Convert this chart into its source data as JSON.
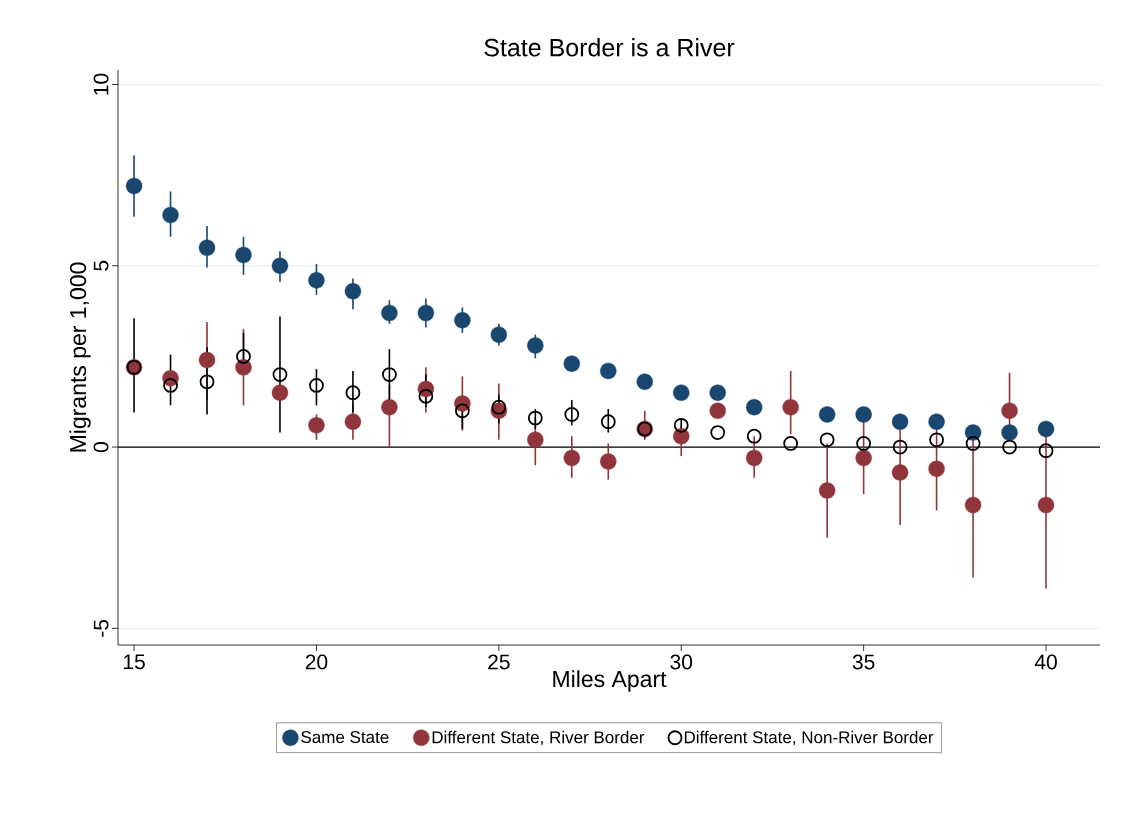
{
  "chart_data": {
    "type": "scatter",
    "title": "State Border is a River",
    "xlabel": "Miles Apart",
    "ylabel": "Migrants per 1,000",
    "x": [
      15,
      16,
      17,
      18,
      19,
      20,
      21,
      22,
      23,
      24,
      25,
      26,
      27,
      28,
      29,
      30,
      31,
      32,
      33,
      34,
      35,
      36,
      37,
      38,
      39,
      40
    ],
    "series": [
      {
        "name": "Same State",
        "color": "#1a476f",
        "values": [
          7.2,
          6.4,
          5.5,
          5.3,
          5.0,
          4.6,
          4.3,
          3.7,
          3.7,
          3.5,
          3.1,
          2.8,
          2.3,
          2.1,
          1.8,
          1.5,
          1.5,
          1.1,
          null,
          0.9,
          0.9,
          0.7,
          0.7,
          0.4,
          0.4,
          0.5
        ],
        "errors": [
          [
            6.35,
            8.05
          ],
          [
            5.8,
            7.05
          ],
          [
            4.95,
            6.1
          ],
          [
            4.75,
            5.8
          ],
          [
            4.55,
            5.4
          ],
          [
            4.2,
            5.05
          ],
          [
            3.8,
            4.65
          ],
          [
            3.4,
            4.05
          ],
          [
            3.3,
            4.1
          ],
          [
            3.15,
            3.85
          ],
          [
            2.8,
            3.4
          ],
          [
            2.45,
            3.1
          ],
          null,
          null,
          null,
          null,
          null,
          null,
          null,
          null,
          null,
          null,
          null,
          null,
          null,
          null
        ]
      },
      {
        "name": "Different State, River Border",
        "color": "#90353b",
        "values": [
          2.2,
          1.9,
          2.4,
          2.2,
          1.5,
          0.6,
          0.7,
          1.1,
          1.6,
          1.2,
          1.0,
          0.2,
          -0.3,
          -0.4,
          0.5,
          0.3,
          1.0,
          -0.3,
          1.1,
          -1.2,
          -0.3,
          -0.7,
          -0.6,
          -1.6,
          1.0,
          -1.6
        ],
        "errors": [
          null,
          null,
          [
            1.3,
            3.45
          ],
          [
            1.15,
            3.25
          ],
          null,
          [
            0.2,
            0.9
          ],
          [
            0.2,
            1.2
          ],
          [
            0.0,
            1.7
          ],
          [
            0.95,
            2.2
          ],
          [
            0.45,
            1.95
          ],
          [
            0.2,
            1.75
          ],
          [
            -0.5,
            0.8
          ],
          [
            -0.85,
            0.3
          ],
          [
            -0.9,
            0.1
          ],
          [
            0.2,
            1.0
          ],
          [
            -0.25,
            0.6
          ],
          null,
          [
            -0.85,
            0.3
          ],
          [
            0.35,
            2.1
          ],
          [
            -2.5,
            0.1
          ],
          [
            -1.3,
            0.75
          ],
          [
            -2.15,
            0.5
          ],
          [
            -1.75,
            0.5
          ],
          [
            -3.6,
            0.3
          ],
          [
            0.25,
            2.05
          ],
          [
            -3.9,
            0.65
          ]
        ]
      },
      {
        "name": "Different State, Non-River Border",
        "color": "#000000",
        "values": [
          2.2,
          1.7,
          1.8,
          2.5,
          2.0,
          1.7,
          1.5,
          2.0,
          1.4,
          1.0,
          1.1,
          0.8,
          0.9,
          0.7,
          0.5,
          0.6,
          0.4,
          0.3,
          0.1,
          0.2,
          0.1,
          0.0,
          0.2,
          0.1,
          0.0,
          -0.1
        ],
        "errors": [
          [
            0.95,
            3.55
          ],
          [
            1.15,
            2.55
          ],
          [
            0.9,
            2.75
          ],
          [
            2.0,
            3.15
          ],
          [
            0.4,
            3.6
          ],
          [
            1.15,
            2.15
          ],
          [
            0.95,
            2.1
          ],
          [
            1.3,
            2.7
          ],
          [
            1.1,
            2.0
          ],
          [
            0.5,
            1.3
          ],
          [
            0.65,
            1.45
          ],
          [
            0.5,
            1.05
          ],
          [
            0.6,
            1.3
          ],
          [
            0.4,
            1.05
          ],
          [
            0.25,
            0.7
          ],
          [
            0.4,
            0.8
          ],
          null,
          null,
          null,
          null,
          null,
          null,
          null,
          null,
          null,
          null
        ]
      }
    ],
    "xlim": [
      14.56,
      41.48
    ],
    "ylim": [
      -5.46,
      10.4
    ],
    "xticks": [
      15,
      20,
      25,
      30,
      35,
      40
    ],
    "yticks": [
      -5,
      0,
      5,
      10
    ],
    "grid": "y",
    "legend": "bottom",
    "marker": "circle",
    "ref_lines": [
      {
        "axis": "y",
        "value": 0,
        "color": "#000000"
      }
    ]
  }
}
